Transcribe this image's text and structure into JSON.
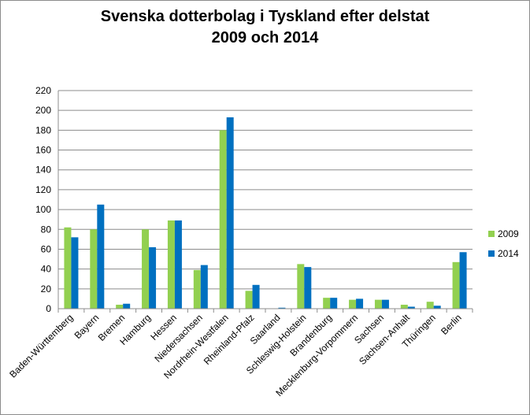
{
  "chart_data": {
    "type": "bar",
    "title_line1": "Svenska dotterbolag i Tyskland efter delstat",
    "title_line2": "2009 och 2014",
    "categories": [
      "Baden-Württemberg",
      "Bayern",
      "Bremen",
      "Hamburg",
      "Hessen",
      "Niedersachsen",
      "Nordrhein-Westfalen",
      "Rheinland-Pfalz",
      "Saarland",
      "Schleswig-Holstein",
      "Brandenburg",
      "Mecklenburg-Vorpommern",
      "Sachsen",
      "Sachsen-Anhalt",
      "Thüringen",
      "Berlin"
    ],
    "series": [
      {
        "name": "2009",
        "color": "#92d050",
        "values": [
          82,
          80,
          4,
          80,
          89,
          39,
          180,
          18,
          0,
          45,
          11,
          9,
          9,
          4,
          7,
          47
        ]
      },
      {
        "name": "2014",
        "color": "#0070c0",
        "values": [
          72,
          105,
          5,
          62,
          89,
          44,
          193,
          24,
          1,
          42,
          11,
          10,
          9,
          2,
          3,
          57
        ]
      }
    ],
    "ylim": [
      0,
      220
    ],
    "yticks": [
      0,
      20,
      40,
      60,
      80,
      100,
      120,
      140,
      160,
      180,
      200,
      220
    ],
    "grid": true,
    "legend_position": "right"
  }
}
